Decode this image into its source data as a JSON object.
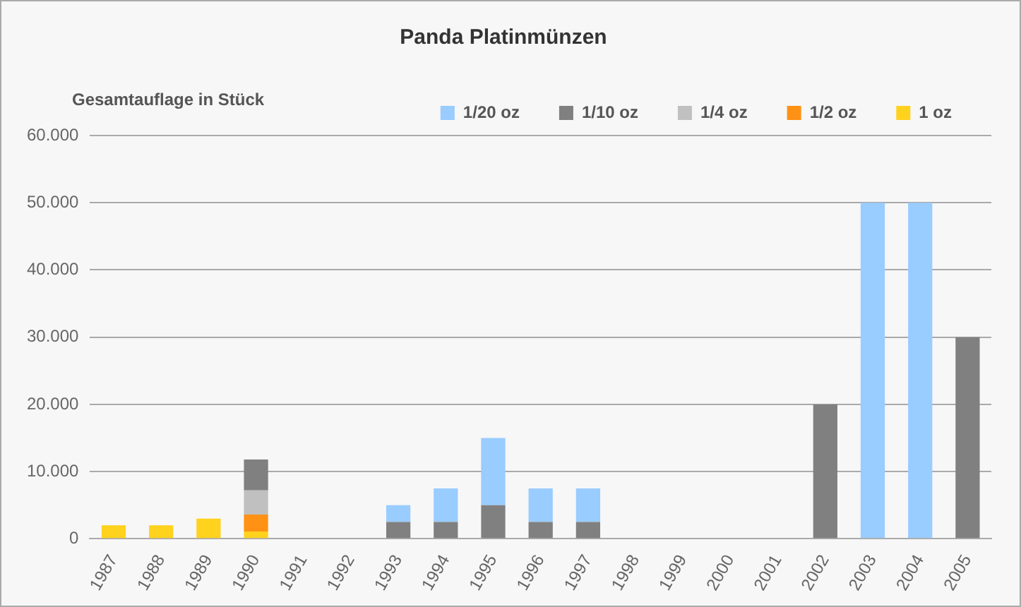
{
  "chart_data": {
    "type": "bar",
    "title": "Panda Platinmünzen",
    "ylabel": "Gesamtauflage in Stück",
    "categories": [
      "1987",
      "1988",
      "1989",
      "1990",
      "1991",
      "1992",
      "1993",
      "1994",
      "1995",
      "1996",
      "1997",
      "1998",
      "1999",
      "2000",
      "2001",
      "2002",
      "2003",
      "2004",
      "2005"
    ],
    "stacked": true,
    "series": [
      {
        "name": "1 oz",
        "color": "#ffd21e",
        "values": [
          2000,
          2000,
          3000,
          1100,
          null,
          null,
          null,
          null,
          null,
          null,
          null,
          null,
          null,
          null,
          null,
          null,
          null,
          null,
          null
        ]
      },
      {
        "name": "1/2 oz",
        "color": "#ff9115",
        "values": [
          null,
          null,
          null,
          2500,
          null,
          null,
          null,
          null,
          null,
          null,
          null,
          null,
          null,
          null,
          null,
          null,
          null,
          null,
          null
        ]
      },
      {
        "name": "1/4 oz",
        "color": "#c0c0c0",
        "values": [
          null,
          null,
          null,
          3600,
          null,
          null,
          null,
          null,
          null,
          null,
          null,
          null,
          null,
          null,
          null,
          null,
          null,
          null,
          null
        ]
      },
      {
        "name": "1/10 oz",
        "color": "#808080",
        "values": [
          null,
          null,
          null,
          4600,
          null,
          null,
          2500,
          2500,
          5000,
          2500,
          2500,
          null,
          null,
          null,
          null,
          20000,
          null,
          null,
          30000
        ]
      },
      {
        "name": "1/20 oz",
        "color": "#99ccff",
        "values": [
          null,
          null,
          null,
          null,
          null,
          null,
          2500,
          5000,
          10000,
          5000,
          5000,
          null,
          null,
          null,
          null,
          null,
          50000,
          50000,
          null
        ]
      }
    ],
    "ylim": [
      0,
      60000
    ],
    "yticks": [
      {
        "value": 0,
        "label": "0"
      },
      {
        "value": 10000,
        "label": "10.000"
      },
      {
        "value": 20000,
        "label": "20.000"
      },
      {
        "value": 30000,
        "label": "30.000"
      },
      {
        "value": 40000,
        "label": "40.000"
      },
      {
        "value": 50000,
        "label": "50.000"
      },
      {
        "value": 60000,
        "label": "60.000"
      }
    ],
    "grid": "y",
    "legend": "top right"
  }
}
